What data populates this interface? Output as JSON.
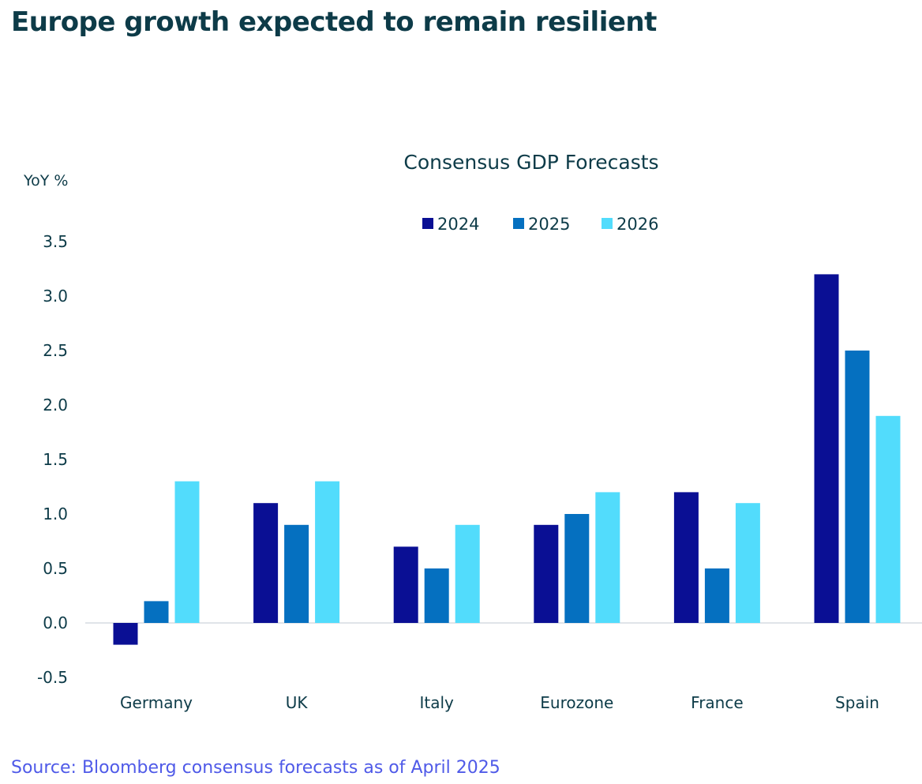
{
  "page": {
    "title": "Europe growth expected to remain resilient",
    "source": "Source: Bloomberg consensus forecasts as of April 2025"
  },
  "chart_data": {
    "type": "bar",
    "title": "Consensus GDP Forecasts",
    "ylabel": "YoY %",
    "xlabel": "",
    "categories": [
      "Germany",
      "UK",
      "Italy",
      "Eurozone",
      "France",
      "Spain"
    ],
    "series": [
      {
        "name": "2024",
        "color": "#0a0f94",
        "values": [
          -0.2,
          1.1,
          0.7,
          0.9,
          1.2,
          3.2
        ]
      },
      {
        "name": "2025",
        "color": "#0570c0",
        "values": [
          0.2,
          0.9,
          0.5,
          1.0,
          0.5,
          2.5
        ]
      },
      {
        "name": "2026",
        "color": "#52dcfc",
        "values": [
          1.3,
          1.3,
          0.9,
          1.2,
          1.1,
          1.9
        ]
      }
    ],
    "ylim": [
      -0.5,
      3.5
    ],
    "yticks": [
      "-0.5",
      "0.0",
      "0.5",
      "1.0",
      "1.5",
      "2.0",
      "2.5",
      "3.0",
      "3.5"
    ],
    "grid": false,
    "legend": "top-center"
  }
}
